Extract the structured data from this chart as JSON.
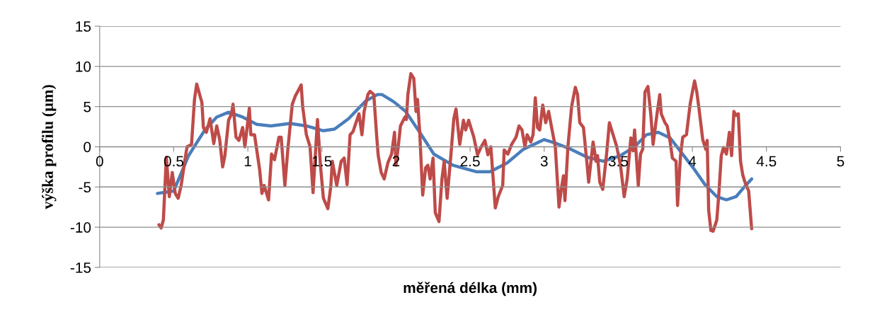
{
  "chart_data": {
    "type": "line",
    "xlabel": "měřená délka (mm)",
    "ylabel": "výška profilu (µm)",
    "xlim": [
      0,
      5
    ],
    "xticks": [
      0,
      0.5,
      1,
      1.5,
      2,
      2.5,
      3,
      3.5,
      4,
      4.5,
      5
    ],
    "ylim": [
      -15,
      15
    ],
    "yticks": [
      -15,
      -10,
      -5,
      0,
      5,
      10,
      15
    ],
    "grid": "y",
    "marker": "none",
    "line_style": "solid",
    "series": [
      {
        "color": "#4a7ebb",
        "x": [
          0.39,
          0.5,
          0.6,
          0.71,
          0.79,
          0.87,
          0.965,
          1.06,
          1.155,
          1.285,
          1.395,
          1.51,
          1.585,
          1.68,
          1.795,
          1.875,
          1.905,
          1.985,
          2.065,
          2.16,
          2.255,
          2.385,
          2.54,
          2.635,
          2.75,
          2.86,
          3.0,
          3.085,
          3.18,
          3.29,
          3.4,
          3.515,
          3.61,
          3.69,
          3.77,
          3.85,
          3.925,
          4.005,
          4.085,
          4.165,
          4.23,
          4.295,
          4.355,
          4.4
        ],
        "values": [
          -5.8,
          -5.5,
          -1.1,
          2.1,
          3.7,
          4.3,
          3.7,
          2.8,
          2.6,
          2.9,
          2.6,
          2.0,
          2.2,
          3.5,
          5.7,
          6.5,
          6.5,
          5.6,
          4.4,
          1.8,
          -0.9,
          -2.3,
          -3.1,
          -3.1,
          -2.0,
          -0.3,
          0.9,
          0.4,
          -0.3,
          -1.3,
          -1.8,
          -1.1,
          0.0,
          1.5,
          1.8,
          1.1,
          -0.7,
          -2.6,
          -4.7,
          -6.2,
          -6.6,
          -6.2,
          -4.9,
          -4.0
        ]
      },
      {
        "color": "#be4b48",
        "x": [
          0.4,
          0.415,
          0.43,
          0.45,
          0.47,
          0.49,
          0.51,
          0.53,
          0.55,
          0.58,
          0.59,
          0.62,
          0.64,
          0.655,
          0.69,
          0.7,
          0.72,
          0.745,
          0.77,
          0.79,
          0.81,
          0.83,
          0.845,
          0.87,
          0.89,
          0.9,
          0.92,
          0.94,
          0.965,
          0.98,
          1.01,
          1.02,
          1.045,
          1.08,
          1.095,
          1.11,
          1.14,
          1.16,
          1.18,
          1.21,
          1.225,
          1.25,
          1.27,
          1.3,
          1.32,
          1.34,
          1.36,
          1.37,
          1.395,
          1.42,
          1.44,
          1.47,
          1.49,
          1.51,
          1.54,
          1.56,
          1.57,
          1.6,
          1.63,
          1.65,
          1.67,
          1.69,
          1.71,
          1.73,
          1.75,
          1.77,
          1.785,
          1.81,
          1.825,
          1.85,
          1.87,
          1.88,
          1.9,
          1.92,
          1.945,
          1.97,
          1.99,
          2.0,
          2.015,
          2.03,
          2.06,
          2.07,
          2.08,
          2.1,
          2.12,
          2.135,
          2.145,
          2.16,
          2.18,
          2.2,
          2.215,
          2.23,
          2.25,
          2.265,
          2.29,
          2.31,
          2.325,
          2.345,
          2.37,
          2.39,
          2.405,
          2.43,
          2.455,
          2.47,
          2.49,
          2.525,
          2.55,
          2.575,
          2.6,
          2.62,
          2.64,
          2.67,
          2.69,
          2.72,
          2.73,
          2.755,
          2.78,
          2.81,
          2.83,
          2.85,
          2.87,
          2.885,
          2.91,
          2.925,
          2.94,
          2.955,
          2.97,
          2.99,
          3.01,
          3.03,
          3.05,
          3.075,
          3.1,
          3.115,
          3.13,
          3.14,
          3.16,
          3.185,
          3.21,
          3.225,
          3.24,
          3.265,
          3.29,
          3.3,
          3.33,
          3.35,
          3.36,
          3.375,
          3.395,
          3.42,
          3.44,
          3.47,
          3.49,
          3.515,
          3.54,
          3.56,
          3.585,
          3.6,
          3.61,
          3.635,
          3.65,
          3.665,
          3.68,
          3.7,
          3.72,
          3.735,
          3.76,
          3.78,
          3.79,
          3.815,
          3.83,
          3.85,
          3.865,
          3.89,
          3.9,
          3.92,
          3.935,
          3.96,
          3.985,
          4.0,
          4.015,
          4.03,
          4.045,
          4.07,
          4.09,
          4.1,
          4.11,
          4.125,
          4.14,
          4.165,
          4.18,
          4.195,
          4.21,
          4.23,
          4.25,
          4.265,
          4.28,
          4.295,
          4.31,
          4.325,
          4.34,
          4.355,
          4.38,
          4.4
        ],
        "values": [
          -9.7,
          -10.1,
          -9.1,
          -1.3,
          -6.2,
          -3.2,
          -5.8,
          -6.4,
          -4.8,
          -1.1,
          0.0,
          0.3,
          5.9,
          7.8,
          5.5,
          2.4,
          1.8,
          3.5,
          0.4,
          2.6,
          0.9,
          -2.5,
          -1.1,
          3.3,
          4.1,
          5.3,
          1.2,
          0.8,
          2.4,
          0.0,
          4.8,
          1.5,
          1.5,
          -2.9,
          -5.8,
          -4.8,
          -6.6,
          -0.9,
          -1.6,
          1.2,
          1.2,
          -4.8,
          -0.3,
          5.3,
          6.3,
          7.0,
          7.7,
          5.0,
          1.5,
          0.0,
          -5.7,
          3.4,
          -2.3,
          -6.4,
          -7.7,
          -4.9,
          -1.8,
          -4.8,
          -1.8,
          -1.4,
          -4.7,
          1.5,
          1.9,
          3.0,
          4.1,
          1.5,
          4.4,
          6.5,
          6.9,
          6.5,
          1.2,
          -1.1,
          -3.2,
          -4.0,
          -2.0,
          -0.9,
          1.8,
          -2.3,
          0.0,
          2.6,
          3.7,
          3.4,
          6.5,
          9.1,
          8.5,
          4.4,
          5.9,
          1.8,
          -6.0,
          -2.6,
          -2.3,
          -4.0,
          -1.4,
          -8.2,
          -9.3,
          -4.0,
          -1.8,
          -6.4,
          -1.1,
          3.5,
          4.7,
          0.3,
          3.3,
          2.1,
          3.3,
          1.2,
          -1.0,
          0.0,
          0.8,
          -1.0,
          0.0,
          -7.6,
          -6.2,
          -4.8,
          -0.4,
          -0.9,
          0.3,
          1.2,
          2.6,
          2.1,
          0.0,
          1.5,
          0.6,
          1.5,
          6.1,
          2.4,
          2.1,
          5.2,
          3.0,
          4.4,
          2.4,
          0.0,
          -7.5,
          -5.3,
          -3.6,
          -6.7,
          0.0,
          5.0,
          7.4,
          6.5,
          3.0,
          2.4,
          -2.3,
          -4.4,
          0.6,
          -1.8,
          -1.1,
          -4.4,
          -5.3,
          -1.1,
          3.0,
          1.2,
          0.0,
          -2.3,
          -6.2,
          -4.0,
          1.1,
          -0.5,
          2.1,
          -4.8,
          -0.9,
          -0.3,
          6.8,
          7.5,
          3.9,
          0.3,
          3.9,
          6.5,
          4.1,
          3.0,
          2.6,
          0.6,
          -1.4,
          -1.8,
          -7.3,
          -1.1,
          1.2,
          1.5,
          5.3,
          6.8,
          8.2,
          6.8,
          4.7,
          0.9,
          -0.3,
          0.8,
          -7.9,
          -10.4,
          -10.5,
          -9.1,
          -5.5,
          -1.1,
          -0.1,
          -0.9,
          1.8,
          -1.1,
          4.4,
          3.9,
          4.1,
          -1.8,
          -3.5,
          -4.4,
          -5.5,
          -10.2
        ]
      }
    ]
  }
}
